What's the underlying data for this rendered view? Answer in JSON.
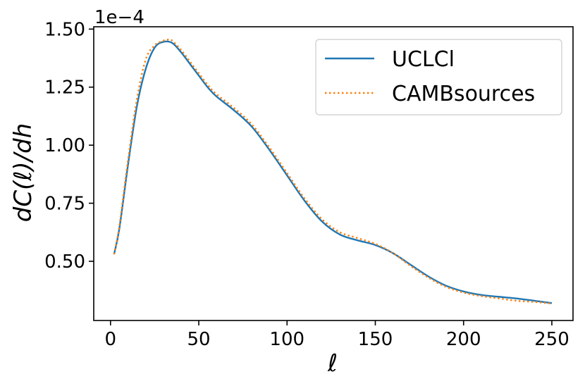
{
  "chart_data": {
    "type": "line",
    "xlabel": "ℓ",
    "ylabel": "dC(ℓ)/dh",
    "y_offset_text": "1e−4",
    "y_scale": 0.0001,
    "xlim": [
      -9.5,
      262
    ],
    "ylim": [
      0.245,
      1.51
    ],
    "x_ticks": [
      0,
      50,
      100,
      150,
      200,
      250
    ],
    "x_tick_labels": [
      "0",
      "50",
      "100",
      "150",
      "200",
      "250"
    ],
    "y_ticks": [
      0.5,
      0.75,
      1.0,
      1.25,
      1.5
    ],
    "y_tick_labels": [
      "0.50",
      "0.75",
      "1.00",
      "1.25",
      "1.50"
    ],
    "grid": false,
    "legend_position": "top-right",
    "series": [
      {
        "name": "UCLCl",
        "color": "#1f77b4",
        "style": "solid",
        "x": [
          2,
          5,
          10,
          15,
          20,
          25,
          30,
          35,
          40,
          45,
          50,
          55,
          60,
          70,
          80,
          90,
          100,
          110,
          120,
          130,
          140,
          150,
          160,
          170,
          180,
          190,
          200,
          210,
          220,
          230,
          240,
          250
        ],
        "y": [
          0.53,
          0.64,
          0.92,
          1.17,
          1.33,
          1.42,
          1.445,
          1.44,
          1.4,
          1.35,
          1.3,
          1.25,
          1.21,
          1.15,
          1.08,
          0.98,
          0.87,
          0.76,
          0.67,
          0.615,
          0.59,
          0.57,
          0.535,
          0.485,
          0.435,
          0.395,
          0.37,
          0.355,
          0.347,
          0.34,
          0.33,
          0.32
        ]
      },
      {
        "name": "CAMBsources",
        "color": "#ff7f0e",
        "style": "dotted",
        "x": [
          2,
          5,
          10,
          15,
          20,
          25,
          30,
          33,
          35,
          40,
          45,
          50,
          55,
          60,
          70,
          80,
          90,
          100,
          110,
          120,
          130,
          140,
          150,
          160,
          170,
          180,
          190,
          200,
          210,
          220,
          230,
          240,
          250
        ],
        "y": [
          0.53,
          0.65,
          0.94,
          1.2,
          1.37,
          1.43,
          1.45,
          1.455,
          1.45,
          1.41,
          1.36,
          1.31,
          1.26,
          1.22,
          1.16,
          1.09,
          0.99,
          0.88,
          0.77,
          0.68,
          0.625,
          0.6,
          0.575,
          0.535,
          0.48,
          0.43,
          0.39,
          0.365,
          0.35,
          0.34,
          0.33,
          0.325,
          0.318
        ]
      }
    ]
  }
}
